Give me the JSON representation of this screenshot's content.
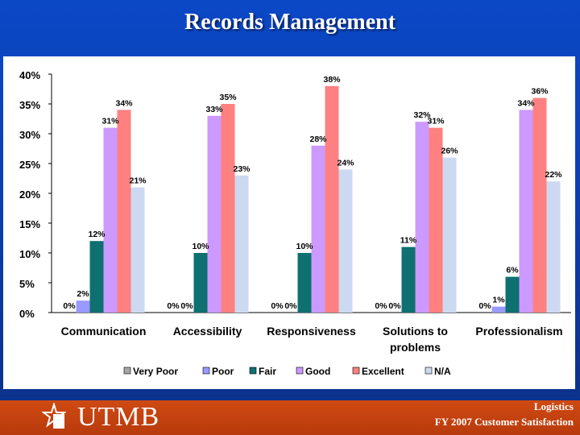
{
  "title": "Records Management",
  "footer": {
    "logo": "UTMB",
    "line1": "Logistics",
    "line2": "FY 2007 Customer Satisfaction"
  },
  "chart_data": {
    "type": "bar",
    "categories": [
      "Communication",
      "Accessibility",
      "Responsiveness",
      "Solutions to problems",
      "Professionalism"
    ],
    "category_lines": [
      [
        "Communication"
      ],
      [
        "Accessibility"
      ],
      [
        "Responsiveness"
      ],
      [
        "Solutions to",
        "problems"
      ],
      [
        "Professionalism"
      ]
    ],
    "ylim": [
      0,
      40
    ],
    "yticks": [
      "0%",
      "5%",
      "10%",
      "15%",
      "20%",
      "25%",
      "30%",
      "35%",
      "40%"
    ],
    "series": [
      {
        "name": "Very Poor",
        "color": "#a6a6a6",
        "values": [
          0,
          0,
          0,
          0,
          0
        ]
      },
      {
        "name": "Poor",
        "color": "#9999ff",
        "values": [
          2,
          0,
          0,
          0,
          1
        ]
      },
      {
        "name": "Fair",
        "color": "#0e7070",
        "values": [
          12,
          10,
          10,
          11,
          6
        ]
      },
      {
        "name": "Good",
        "color": "#cc99ff",
        "values": [
          31,
          33,
          28,
          32,
          34
        ]
      },
      {
        "name": "Excellent",
        "color": "#ff8080",
        "values": [
          34,
          35,
          38,
          31,
          36
        ]
      },
      {
        "name": "N/A",
        "color": "#ccd9f0",
        "values": [
          21,
          23,
          24,
          26,
          22
        ]
      }
    ],
    "labels": [
      [
        "0%",
        "2%",
        "12%",
        "31%",
        "34%",
        "21%"
      ],
      [
        "0%",
        "0%",
        "10%",
        "33%",
        "35%",
        "23%"
      ],
      [
        "0%",
        "0%",
        "10%",
        "28%",
        "38%",
        "24%"
      ],
      [
        "0%",
        "0%",
        "11%",
        "32%",
        "31%",
        "26%"
      ],
      [
        "0%",
        "1%",
        "6%",
        "34%",
        "36%",
        "22%"
      ]
    ],
    "legend_position": "bottom",
    "grid": false
  }
}
